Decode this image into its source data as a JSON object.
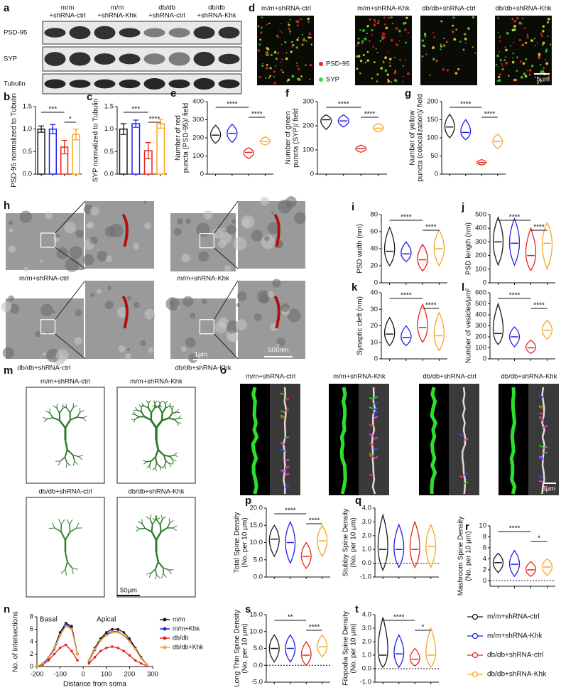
{
  "blot": {
    "label": "a",
    "lanes": [
      [
        "m/m",
        "+shRNA-ctrl"
      ],
      [
        "m/m",
        "+shRNA-Khk"
      ],
      [
        "db/db",
        "+shRNA-ctrl"
      ],
      [
        "db/db",
        "+shRNA-Khk"
      ]
    ],
    "rows": [
      "PSD-95",
      "SYP",
      "Tubulin"
    ]
  },
  "fluorescence": {
    "label": "d",
    "headers": [
      "m/m+shRNA-ctrl",
      "m/m+shRNA-Khk",
      "db/db+shRNA-ctrl",
      "db/db+shRNA-Khk"
    ],
    "legend": [
      {
        "name": "PSD-95",
        "color": "#e8231f"
      },
      {
        "name": "SYP",
        "color": "#3bd33b"
      }
    ],
    "scale_bar": "5μm"
  },
  "em": {
    "label": "h",
    "captions": [
      "m/m+shRNA-ctrl",
      "m/m+shRNA-Khk",
      "db/db+shRNA-ctrl",
      "db/db+shRNA-Khk"
    ],
    "scale_bars": [
      "1μm",
      "500nm"
    ]
  },
  "tracings": {
    "label": "m",
    "captions": [
      "m/m+shRNA-ctrl",
      "m/m+shRNA-Khk",
      "db/db+shRNA-ctrl",
      "db/db+shRNA-Khk"
    ],
    "scale_bar": "50μm"
  },
  "dendrites": {
    "label": "o",
    "headers": [
      "m/m+shRNA-ctrl",
      "m/m+shRNA-Khk",
      "db/db+shRNA-ctrl",
      "db/db+shRNA-Khk"
    ],
    "scale_bar": "5μm"
  },
  "legend": {
    "items": [
      {
        "name": "m/m+shRNA-ctrl",
        "color": "#1a1a1a"
      },
      {
        "name": "m/m+shRNA-Khk",
        "color": "#1f1fe6"
      },
      {
        "name": "db/db+shRNA-ctrl",
        "color": "#e8231f"
      },
      {
        "name": "db/db+shRNA-Khk",
        "color": "#f5a623"
      }
    ]
  },
  "chart_data": [
    {
      "type": "bar",
      "label": "b",
      "ylabel": "PSD-95 normalized to Tubulin",
      "values": [
        1.0,
        1.0,
        0.6,
        0.88
      ],
      "errors": [
        0.07,
        0.1,
        0.15,
        0.12
      ],
      "ylim": [
        0,
        1.5
      ],
      "yticks": [
        {
          "value": 0,
          "label": "0.0"
        },
        0.5,
        {
          "value": 1,
          "label": "1.0"
        },
        1.5
      ],
      "significance": [
        "***",
        "*"
      ]
    },
    {
      "type": "bar",
      "label": "c",
      "ylabel": "SYP normalized to Tubulin",
      "values": [
        1.0,
        1.12,
        0.52,
        1.12
      ],
      "errors": [
        0.12,
        0.08,
        0.18,
        0.1
      ],
      "ylim": [
        0,
        1.5
      ],
      "yticks": [
        {
          "value": 0,
          "label": "0.0"
        },
        0.5,
        {
          "value": 1,
          "label": "1.0"
        },
        1.5
      ],
      "significance": [
        "***",
        "****"
      ]
    },
    {
      "type": "violin",
      "label": "e",
      "ylabel": [
        "Number of red",
        "puncta (PSD-95)/ field"
      ],
      "values": [
        215,
        225,
        120,
        180
      ],
      "lows": [
        170,
        175,
        85,
        160
      ],
      "highs": [
        270,
        275,
        145,
        205
      ],
      "ylim": [
        0,
        400
      ],
      "yticks": [
        0,
        100,
        200,
        300,
        400
      ],
      "significance": [
        "****",
        "****"
      ]
    },
    {
      "type": "violin",
      "label": "f",
      "ylabel": [
        "Number of green",
        "puncta (SYP)/ field"
      ],
      "values": [
        225,
        220,
        105,
        190
      ],
      "lows": [
        185,
        195,
        90,
        175
      ],
      "highs": [
        245,
        245,
        120,
        210
      ],
      "ylim": [
        0,
        300
      ],
      "yticks": [
        0,
        100,
        200,
        300
      ],
      "significance": [
        "****",
        "****"
      ]
    },
    {
      "type": "violin",
      "label": "g",
      "ylabel": [
        "Number of yellow",
        "puncta (colocalization)/ field"
      ],
      "values": [
        130,
        115,
        32,
        90
      ],
      "lows": [
        100,
        95,
        25,
        70
      ],
      "highs": [
        165,
        150,
        40,
        110
      ],
      "ylim": [
        0,
        200
      ],
      "yticks": [
        0,
        50,
        100,
        150,
        200
      ],
      "significance": [
        "****",
        "****"
      ]
    },
    {
      "type": "violin",
      "label": "i",
      "ylabel": "PSD width (nm)",
      "values": [
        37,
        34,
        27,
        40
      ],
      "lows": [
        20,
        25,
        14,
        20
      ],
      "highs": [
        65,
        48,
        45,
        62
      ],
      "ylim": [
        0,
        80
      ],
      "yticks": [
        0,
        20,
        40,
        60,
        80
      ],
      "significance": [
        "****",
        "****"
      ]
    },
    {
      "type": "violin",
      "label": "j",
      "ylabel": "PSD length (nm)",
      "values": [
        300,
        290,
        200,
        290
      ],
      "lows": [
        130,
        130,
        90,
        100
      ],
      "highs": [
        480,
        470,
        400,
        440
      ],
      "ylim": [
        0,
        500
      ],
      "yticks": [
        0,
        100,
        200,
        300,
        400,
        500
      ],
      "significance": [
        "****",
        "****"
      ]
    },
    {
      "type": "violin",
      "label": "k",
      "ylabel": "Synaptic cleft (nm)",
      "values": [
        15,
        13,
        19,
        14
      ],
      "lows": [
        8,
        8,
        10,
        5
      ],
      "highs": [
        25,
        20,
        33,
        28
      ],
      "ylim": [
        0,
        40
      ],
      "yticks": [
        0,
        10,
        20,
        30,
        40
      ],
      "significance": [
        "****",
        "****"
      ]
    },
    {
      "type": "violin",
      "label": "l",
      "ylabel": "Number of vesicles/μm²",
      "values": [
        230,
        200,
        100,
        260
      ],
      "lows": [
        130,
        110,
        50,
        180
      ],
      "highs": [
        500,
        290,
        170,
        350
      ],
      "ylim": [
        0,
        600
      ],
      "yticks": [
        0,
        100,
        200,
        300,
        400,
        500,
        600
      ],
      "significance": [
        "****",
        "****"
      ]
    },
    {
      "type": "line",
      "label": "n",
      "xlabel": "Distance from soma",
      "ylabel": "No. of intersections",
      "annotations": [
        "Basal",
        "Apical"
      ],
      "x": [
        -200,
        -175,
        -150,
        -125,
        -100,
        -75,
        -50,
        -25,
        0,
        25,
        50,
        75,
        100,
        125,
        150,
        175,
        200,
        225,
        250,
        275
      ],
      "series": [
        {
          "name": "m/m",
          "color": "#1a1a1a",
          "values": [
            0,
            0.5,
            1.5,
            3,
            5.5,
            7,
            6.5,
            2,
            null,
            1,
            3,
            4.5,
            5.5,
            6,
            6,
            5.5,
            4.5,
            3,
            1.5,
            0.3
          ]
        },
        {
          "name": "m/m+Khk",
          "color": "#1f1fe6",
          "values": [
            0,
            0.4,
            1.4,
            2.8,
            5,
            6.8,
            6.2,
            2,
            null,
            0.9,
            2.7,
            4.2,
            5.2,
            5.6,
            5.6,
            5,
            4.2,
            2.8,
            1.4,
            0.3
          ]
        },
        {
          "name": "db/db",
          "color": "#e8231f",
          "values": [
            0,
            0.3,
            1,
            2,
            3,
            3.5,
            2.5,
            1,
            null,
            0.5,
            1.5,
            2.5,
            3,
            3.2,
            3,
            2.5,
            1.8,
            1,
            0.5,
            0.1
          ]
        },
        {
          "name": "db/db+Khk",
          "color": "#f5a623",
          "values": [
            0,
            0.5,
            1.5,
            3,
            5,
            6.5,
            6,
            2,
            null,
            1,
            2.8,
            4.2,
            5,
            5.5,
            5.5,
            5,
            4,
            2.8,
            1.3,
            0.3
          ]
        }
      ],
      "xlim": [
        -200,
        300
      ],
      "xticks": [
        -200,
        -100,
        0,
        100,
        200,
        300
      ],
      "ylim": [
        0,
        8
      ],
      "yticks": [
        0,
        2,
        4,
        6,
        8
      ]
    },
    {
      "type": "violin",
      "label": "p",
      "ylabel": [
        "Total Spine Density",
        "(No. per 10 μm)"
      ],
      "values": [
        11,
        10,
        6,
        10.5
      ],
      "lows": [
        6,
        4,
        2.5,
        6
      ],
      "highs": [
        15,
        16,
        10,
        15
      ],
      "ylim": [
        0,
        20
      ],
      "yticks": [
        {
          "value": 0,
          "label": "0.0"
        },
        {
          "value": 5,
          "label": "5.0"
        },
        {
          "value": 10,
          "label": "10.0"
        },
        {
          "value": 15,
          "label": "15.0"
        },
        {
          "value": 20,
          "label": "20.0"
        }
      ],
      "significance": [
        "****",
        "****"
      ]
    },
    {
      "type": "violin",
      "label": "q",
      "ylabel": [
        "Stubby Spine Density",
        "(No. per 10 μm)"
      ],
      "values": [
        1,
        1,
        1,
        1.2
      ],
      "lows": [
        -0.5,
        -0.3,
        -0.3,
        -0.3
      ],
      "highs": [
        3.5,
        2.8,
        3,
        2.8
      ],
      "ylim": [
        -1,
        4
      ],
      "yticks": [
        {
          "value": -1,
          "label": "-1.0"
        },
        {
          "value": 0,
          "label": "0.0"
        },
        {
          "value": 1,
          "label": "1.0"
        },
        {
          "value": 2,
          "label": "2.0"
        },
        {
          "value": 3,
          "label": "3.0"
        },
        {
          "value": 4,
          "label": "4.0"
        }
      ],
      "zero_line": true
    },
    {
      "type": "violin",
      "label": "r",
      "ylabel": [
        "Mashroom Spine Density",
        "(No. per 10 μm)"
      ],
      "values": [
        3.3,
        3,
        2,
        2.5
      ],
      "lows": [
        1.5,
        0.8,
        0.8,
        1
      ],
      "highs": [
        5,
        5.5,
        3.5,
        4
      ],
      "ylim": [
        -1,
        10
      ],
      "yticks": [
        0,
        2,
        4,
        6,
        8,
        10
      ],
      "significance": [
        "****",
        "*"
      ],
      "zero_line": true
    },
    {
      "type": "violin",
      "label": "s",
      "ylabel": [
        "Long Thin Spine Density",
        "(No. per 10 μm)"
      ],
      "values": [
        5,
        5,
        3,
        5.5
      ],
      "lows": [
        1,
        1,
        0,
        2.5
      ],
      "highs": [
        9,
        9,
        7,
        9
      ],
      "ylim": [
        -5,
        15
      ],
      "yticks": [
        {
          "value": -5,
          "label": "-5.0"
        },
        {
          "value": 0,
          "label": "0.0"
        },
        {
          "value": 5,
          "label": "5.0"
        },
        {
          "value": 10,
          "label": "10.0"
        },
        {
          "value": 15,
          "label": "15.0"
        }
      ],
      "significance": [
        "**",
        "****"
      ],
      "zero_line": true
    },
    {
      "type": "violin",
      "label": "t",
      "ylabel": [
        "Filopodia Spine Density",
        "(No. per 10 μm)"
      ],
      "values": [
        1,
        1.1,
        0.7,
        1
      ],
      "lows": [
        0.1,
        0.1,
        0.2,
        0.1
      ],
      "highs": [
        3.8,
        2.5,
        1.5,
        3.0
      ],
      "ylim": [
        -1,
        4
      ],
      "yticks": [
        {
          "value": -1,
          "label": "-1.0"
        },
        {
          "value": 0,
          "label": "0.0"
        },
        {
          "value": 1,
          "label": "1.0"
        },
        {
          "value": 2,
          "label": "2.0"
        },
        {
          "value": 3,
          "label": "3.0"
        },
        {
          "value": 4,
          "label": "4.0"
        }
      ],
      "significance": [
        "****",
        "*"
      ],
      "zero_line": true
    }
  ]
}
